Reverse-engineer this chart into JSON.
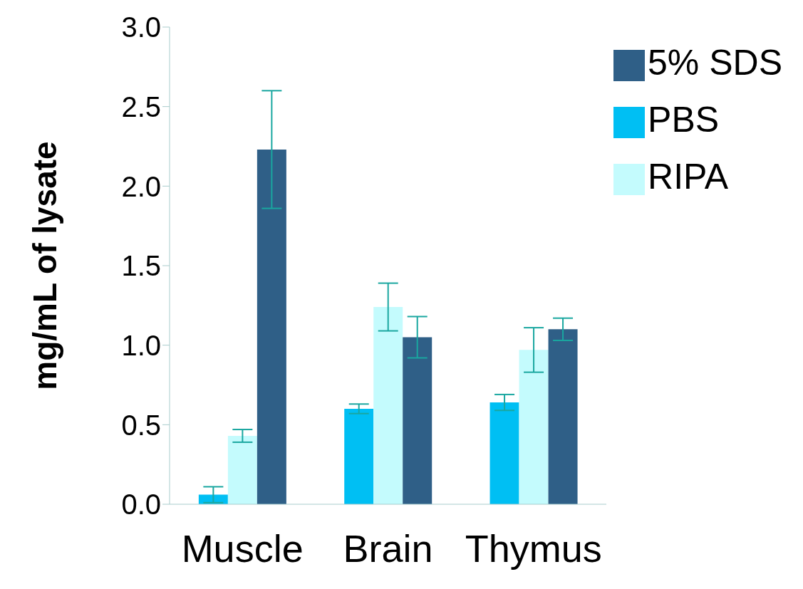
{
  "chart_data": {
    "type": "bar",
    "ylabel": "mg/mL of lysate",
    "categories": [
      "Muscle",
      "Brain",
      "Thymus"
    ],
    "series": [
      {
        "name": "PBS",
        "color": "#00bff3",
        "values": [
          0.06,
          0.6,
          0.64
        ],
        "errors": [
          0.05,
          0.03,
          0.05
        ]
      },
      {
        "name": "RIPA",
        "color": "#c4fbfd",
        "values": [
          0.43,
          1.24,
          0.97
        ],
        "errors": [
          0.04,
          0.15,
          0.14
        ]
      },
      {
        "name": "5% SDS",
        "color": "#2f5f87",
        "values": [
          2.23,
          1.05,
          1.1
        ],
        "errors": [
          0.37,
          0.13,
          0.07
        ]
      }
    ],
    "ylim": [
      0,
      3
    ],
    "yticks": [
      {
        "value": 0,
        "label": "0.0"
      },
      {
        "value": 0.5,
        "label": "0.5"
      },
      {
        "value": 1,
        "label": "1.0"
      },
      {
        "value": 1.5,
        "label": "1.5"
      },
      {
        "value": 2,
        "label": "2.0"
      },
      {
        "value": 2.5,
        "label": "2.5"
      },
      {
        "value": 3,
        "label": "3.0"
      }
    ],
    "grid": false,
    "legend": "top right"
  }
}
